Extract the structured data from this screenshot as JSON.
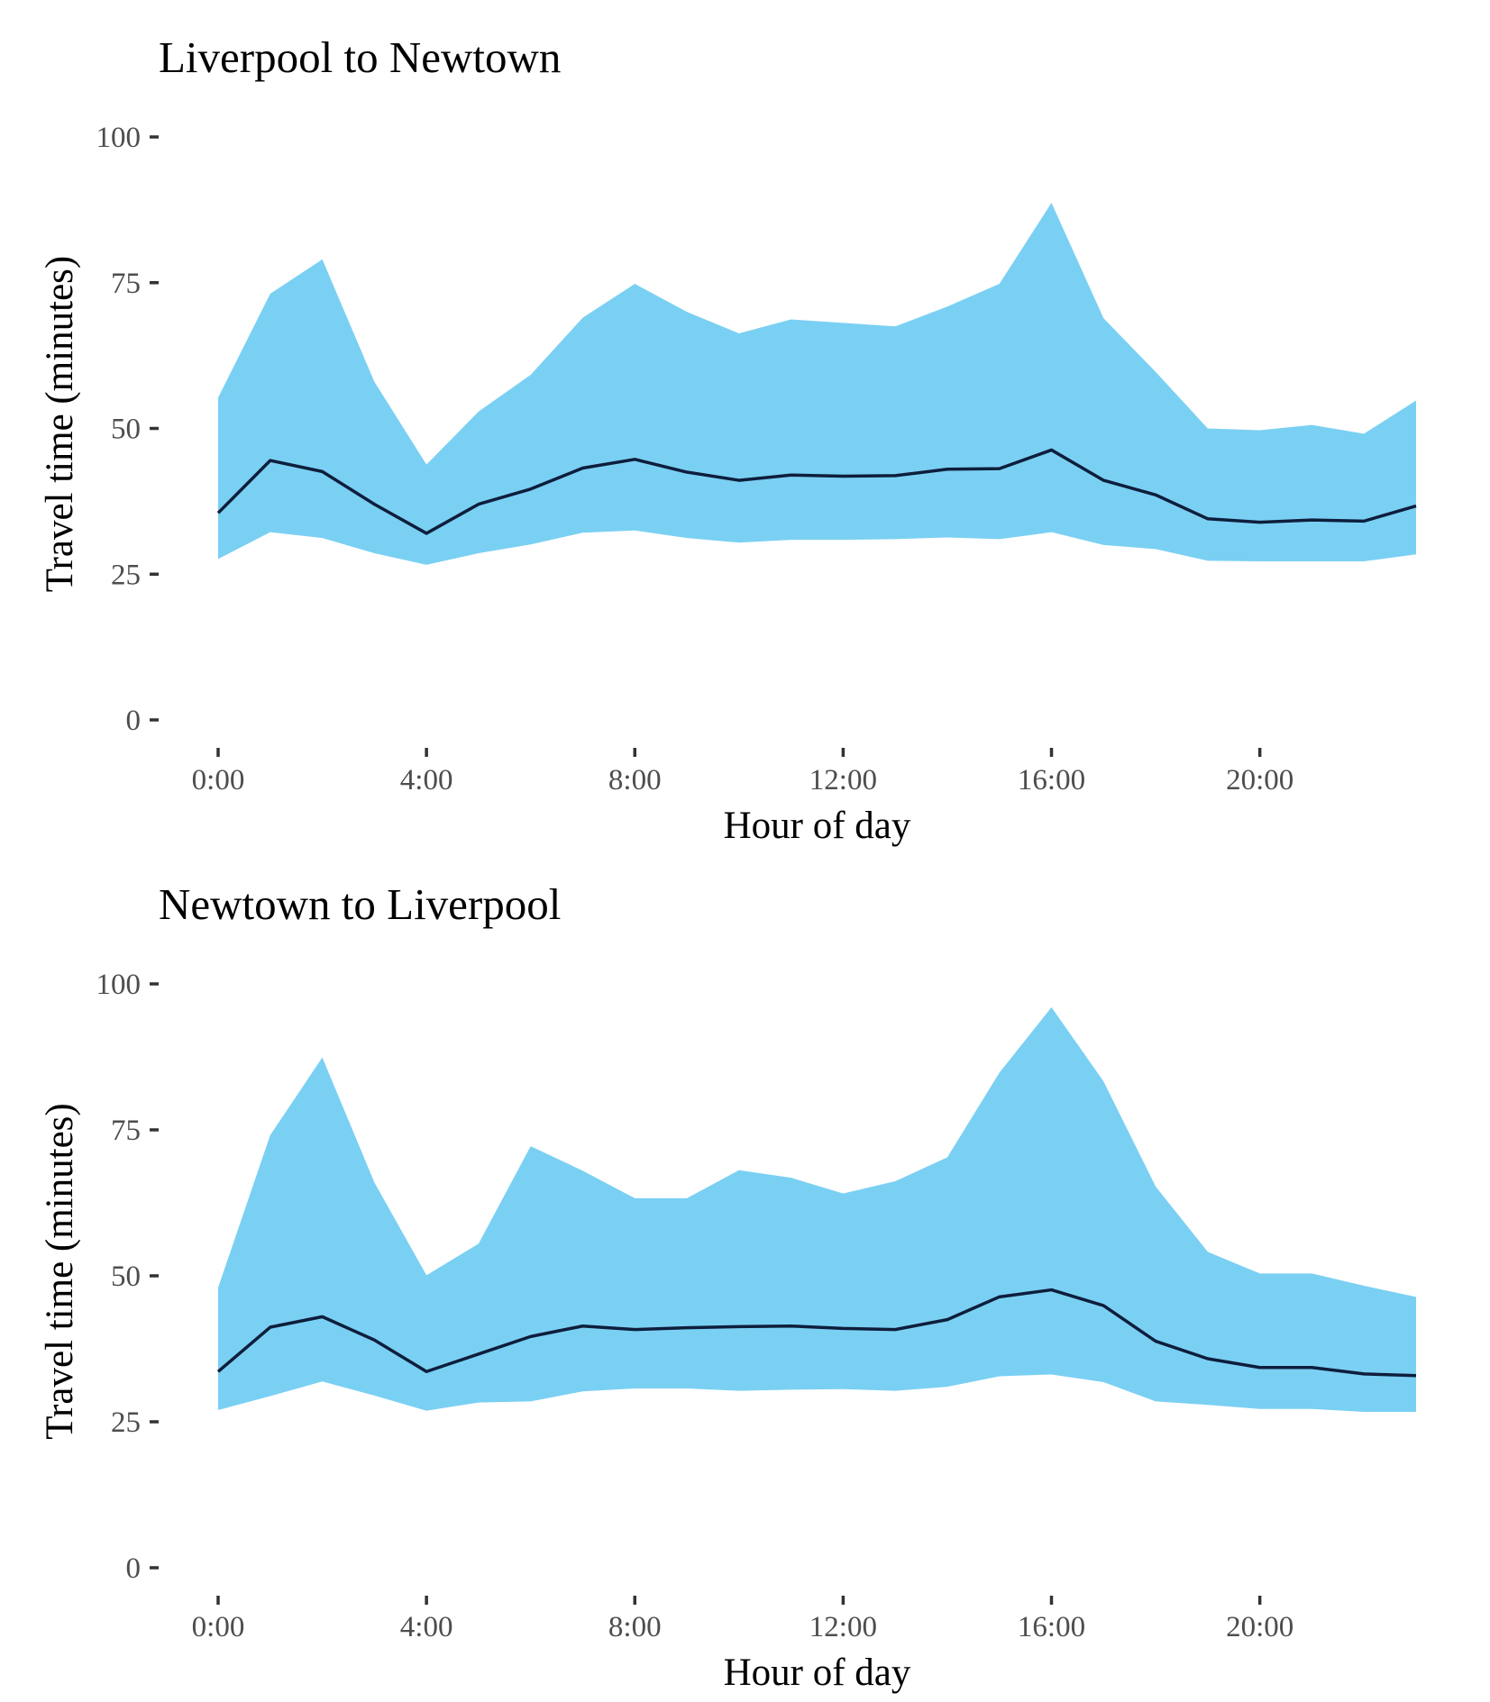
{
  "colors": {
    "band_fill": "#7ad0f3",
    "line_stroke": "#0e1e3c",
    "tick_text": "#4d4d4d",
    "title_text": "#000000"
  },
  "chart_data": [
    {
      "type": "area",
      "title": "Liverpool to Newtown",
      "xlabel": "Hour of day",
      "ylabel": "Travel time (minutes)",
      "xlim": [
        0,
        23
      ],
      "ylim": [
        0,
        100
      ],
      "grid": false,
      "legend": "none",
      "x_ticks": [
        0,
        4,
        8,
        12,
        16,
        20
      ],
      "x_tick_labels": [
        "0:00",
        "4:00",
        "8:00",
        "12:00",
        "16:00",
        "20:00"
      ],
      "y_ticks": [
        0,
        25,
        50,
        75,
        100
      ],
      "y_tick_labels": [
        "0",
        "25",
        "50",
        "75",
        "100"
      ],
      "x": [
        0,
        1,
        2,
        3,
        4,
        5,
        6,
        7,
        8,
        9,
        10,
        11,
        12,
        13,
        14,
        15,
        16,
        17,
        18,
        19,
        20,
        21,
        22,
        23
      ],
      "band_upper": [
        55.3,
        73.1,
        79.0,
        58.0,
        43.8,
        52.9,
        59.2,
        69.0,
        74.8,
        70.0,
        66.3,
        68.7,
        68.1,
        67.5,
        70.9,
        74.8,
        88.7,
        68.9,
        59.7,
        50.0,
        49.7,
        50.6,
        49.1,
        54.8
      ],
      "band_lower": [
        27.6,
        32.2,
        31.2,
        28.6,
        26.6,
        28.6,
        30.1,
        32.1,
        32.5,
        31.2,
        30.4,
        30.9,
        30.9,
        31.0,
        31.3,
        31.0,
        32.2,
        30.0,
        29.3,
        27.3,
        27.2,
        27.2,
        27.2,
        28.4
      ],
      "median": [
        35.5,
        44.5,
        42.6,
        37.0,
        32.0,
        37.0,
        39.6,
        43.2,
        44.7,
        42.5,
        41.1,
        42.0,
        41.8,
        41.9,
        43.0,
        43.1,
        46.3,
        41.1,
        38.6,
        34.5,
        33.9,
        34.3,
        34.1,
        36.7
      ]
    },
    {
      "type": "area",
      "title": "Newtown to Liverpool",
      "xlabel": "Hour of day",
      "ylabel": "Travel time (minutes)",
      "xlim": [
        0,
        23
      ],
      "ylim": [
        0,
        100
      ],
      "grid": false,
      "legend": "none",
      "x_ticks": [
        0,
        4,
        8,
        12,
        16,
        20
      ],
      "x_tick_labels": [
        "0:00",
        "4:00",
        "8:00",
        "12:00",
        "16:00",
        "20:00"
      ],
      "y_ticks": [
        0,
        25,
        50,
        75,
        100
      ],
      "y_tick_labels": [
        "0",
        "25",
        "50",
        "75",
        "100"
      ],
      "x": [
        0,
        1,
        2,
        3,
        4,
        5,
        6,
        7,
        8,
        9,
        10,
        11,
        12,
        13,
        14,
        15,
        16,
        17,
        18,
        19,
        20,
        21,
        22,
        23
      ],
      "band_upper": [
        48.0,
        74.1,
        87.4,
        66.0,
        50.1,
        55.5,
        72.2,
        68.0,
        63.3,
        63.3,
        68.1,
        66.8,
        64.1,
        66.2,
        70.3,
        84.8,
        96.0,
        83.3,
        65.3,
        54.1,
        50.4,
        50.4,
        48.3,
        46.4
      ],
      "band_lower": [
        27.0,
        29.4,
        31.9,
        29.5,
        26.9,
        28.3,
        28.5,
        30.2,
        30.7,
        30.7,
        30.3,
        30.5,
        30.6,
        30.3,
        31.0,
        32.8,
        33.1,
        31.8,
        28.5,
        27.9,
        27.2,
        27.2,
        26.7,
        26.7
      ],
      "median": [
        33.6,
        41.2,
        43.0,
        39.0,
        33.6,
        36.6,
        39.6,
        41.4,
        40.8,
        41.1,
        41.3,
        41.4,
        41.0,
        40.8,
        42.5,
        46.4,
        47.6,
        44.9,
        38.8,
        35.8,
        34.3,
        34.3,
        33.2,
        32.9
      ]
    }
  ]
}
